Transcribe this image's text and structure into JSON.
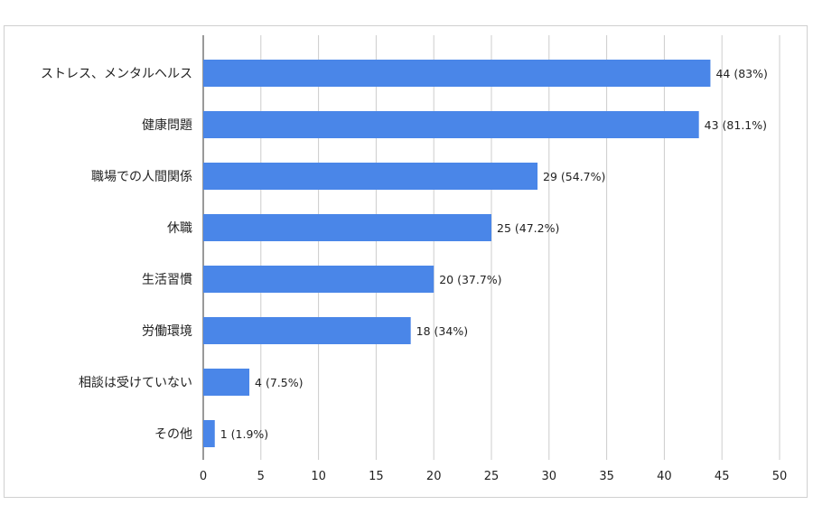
{
  "chart_data": {
    "type": "bar",
    "orientation": "horizontal",
    "title": "",
    "xlabel": "",
    "ylabel": "",
    "xlim": [
      0,
      50
    ],
    "ticks": [
      0,
      5,
      10,
      15,
      20,
      25,
      30,
      35,
      40,
      45,
      50
    ],
    "grid": true,
    "bar_color": "#4a86e8",
    "categories": [
      "ストレス、メンタルヘルス",
      "健康問題",
      "職場での人間関係",
      "休職",
      "生活習慣",
      "労働環境",
      "相談は受けていない",
      "その他"
    ],
    "values": [
      44,
      43,
      29,
      25,
      20,
      18,
      4,
      1
    ],
    "data_labels": [
      "44 (83%)",
      "43 (81.1%)",
      "29 (54.7%)",
      "25 (47.2%)",
      "20 (37.7%)",
      "18 (34%)",
      "4 (7.5%)",
      "1 (1.9%)"
    ]
  }
}
